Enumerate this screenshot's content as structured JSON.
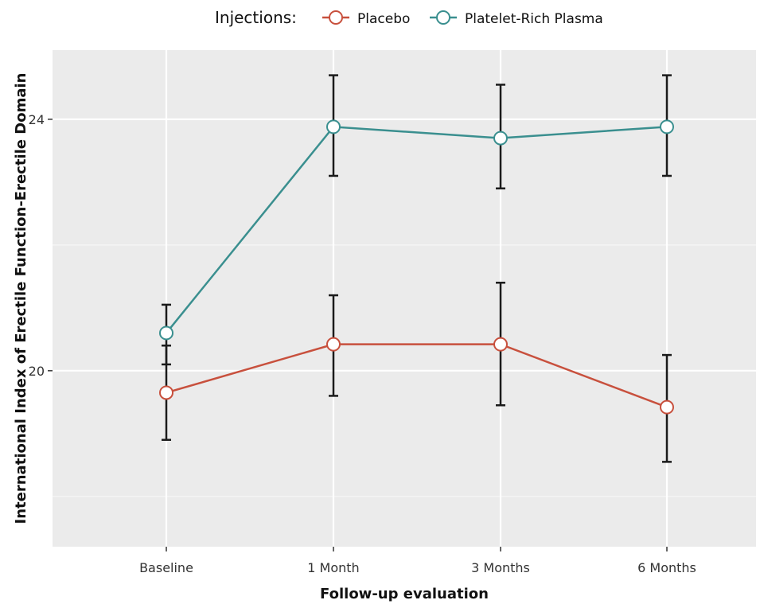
{
  "chart_data": {
    "type": "line",
    "xlabel": "Follow-up evaluation",
    "ylabel": "International Index of Erectile Function-Erectile Domain",
    "categories": [
      "Baseline",
      "1 Month",
      "3 Months",
      "6 Months"
    ],
    "ylim": [
      17.2,
      25.1
    ],
    "yticks": [
      20,
      24
    ],
    "grid": true,
    "legend": {
      "title": "Injections:",
      "placement": "top"
    },
    "series": [
      {
        "name": "Placebo",
        "color": "#c8503d",
        "values": [
          19.65,
          20.42,
          20.42,
          19.42
        ],
        "error": [
          [
            18.9,
            20.4
          ],
          [
            19.6,
            21.2
          ],
          [
            19.45,
            21.4
          ],
          [
            18.55,
            20.25
          ]
        ]
      },
      {
        "name": "Platelet-Rich Plasma",
        "color": "#3a8f8f",
        "values": [
          20.6,
          23.88,
          23.7,
          23.88
        ],
        "error": [
          [
            20.1,
            21.05
          ],
          [
            23.1,
            24.7
          ],
          [
            22.9,
            24.55
          ],
          [
            23.1,
            24.7
          ]
        ]
      }
    ]
  }
}
